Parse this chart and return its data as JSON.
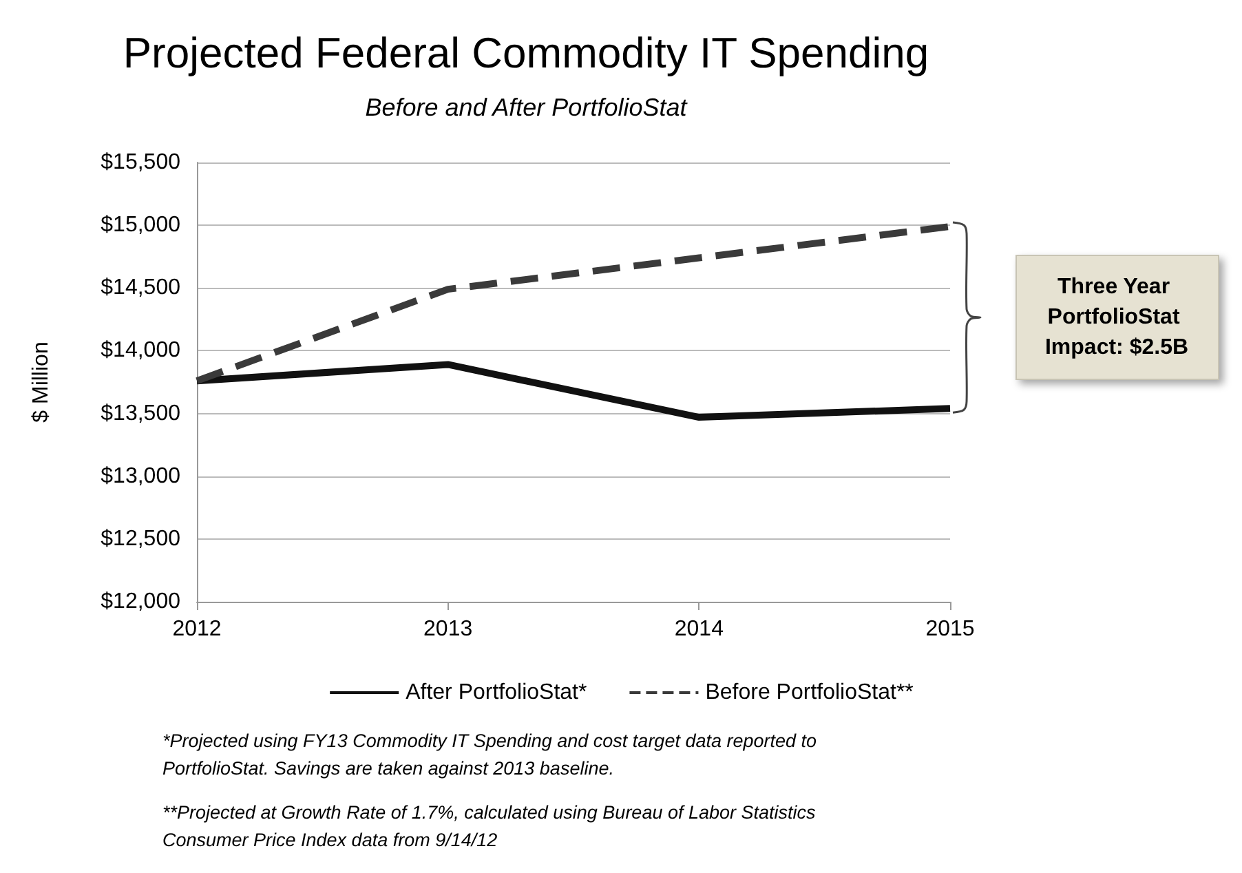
{
  "chart_data": {
    "type": "line",
    "title": "Projected Federal Commodity IT Spending",
    "subtitle": "Before and After PortfolioStat",
    "ylabel": "$ Million",
    "categories": [
      "2012",
      "2013",
      "2014",
      "2015"
    ],
    "series": [
      {
        "name": "After PortfolioStat*",
        "color": "#111111",
        "values": [
          13760,
          13890,
          13470,
          13540
        ],
        "line_style": "solid"
      },
      {
        "name": "Before PortfolioStat**",
        "color": "#3a3a3a",
        "values": [
          13760,
          14490,
          14740,
          14990
        ],
        "line_style": "dashed"
      }
    ],
    "ylim": [
      12000,
      15500
    ],
    "yticks": [
      {
        "value": 12000,
        "label": "$12,000"
      },
      {
        "value": 12500,
        "label": "$12,500"
      },
      {
        "value": 13000,
        "label": "$13,000"
      },
      {
        "value": 13500,
        "label": "$13,500"
      },
      {
        "value": 14000,
        "label": "$14,000"
      },
      {
        "value": 14500,
        "label": "$14,500"
      },
      {
        "value": 15000,
        "label": "$15,000"
      },
      {
        "value": 15500,
        "label": "$15,500"
      }
    ],
    "grid": "y",
    "legend": "bottom",
    "marker": "none",
    "annotations": [
      "Three Year PortfolioStat Impact: $2.5B",
      "*Projected using FY13 Commodity IT Spending and cost target data reported to PortfolioStat. Savings are taken against 2013 baseline.",
      "**Projected at Growth Rate of 1.7%, calculated using Bureau of Labor Statistics Consumer Price Index data from 9/14/12"
    ]
  }
}
